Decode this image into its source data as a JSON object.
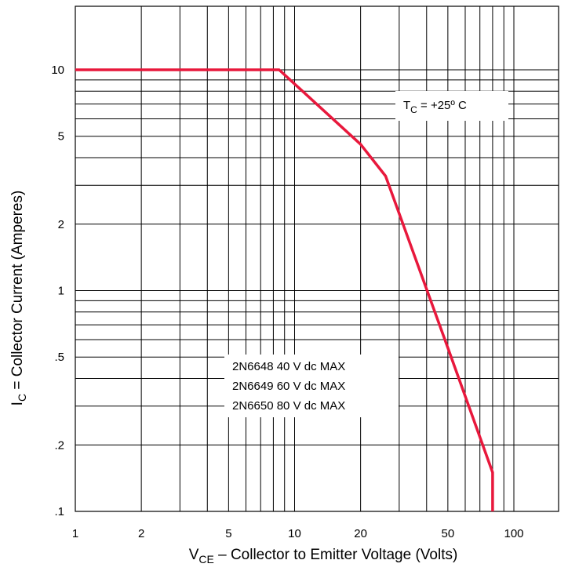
{
  "chart_data": {
    "type": "line",
    "xscale": "log",
    "yscale": "log",
    "xlim": [
      1,
      100
    ],
    "ylim": [
      0.1,
      20
    ],
    "x_ticks": [
      1,
      2,
      5,
      10,
      20,
      50,
      100
    ],
    "x_tick_labels": [
      "1",
      "2",
      "5",
      "10",
      "20",
      "50",
      "100"
    ],
    "y_ticks": [
      0.1,
      0.2,
      0.5,
      1,
      2,
      5,
      10
    ],
    "y_tick_labels": [
      ".1",
      ".2",
      ".5",
      "1",
      "2",
      "5",
      "10"
    ],
    "xlabel": {
      "pre": "V",
      "sub": "CE",
      "post": " – Collector to Emitter Voltage (Volts)"
    },
    "ylabel": {
      "pre": "I",
      "sub": "C",
      "post": " = Collector Current (Amperes)"
    },
    "grid": true,
    "series": [
      {
        "color": "#e8183c",
        "x": [
          1,
          8.5,
          20,
          26,
          50,
          80,
          80
        ],
        "y": [
          10,
          10,
          4.6,
          3.3,
          0.55,
          0.15,
          0.1
        ]
      }
    ],
    "annotations": {
      "temperature": {
        "pre": "T",
        "sub": "C",
        "post": " = +25º C"
      },
      "devices": [
        "2N6648 40 V dc MAX",
        "2N6649 60 V dc MAX",
        "2N6650 80 V dc MAX"
      ]
    }
  }
}
